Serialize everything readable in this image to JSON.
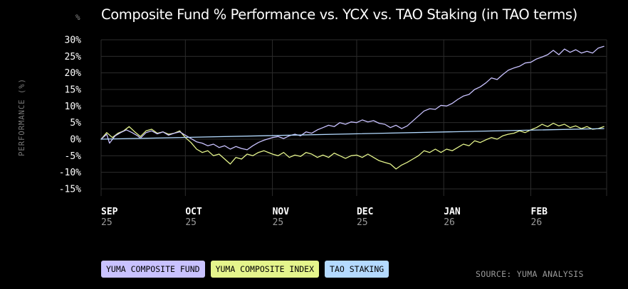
{
  "header": {
    "unit_label": "%",
    "title": "Composite Fund % Performance vs. YCX vs. TAO Staking (in TAO terms)"
  },
  "footer": {
    "source": "SOURCE: YUMA ANALYSIS"
  },
  "colors": {
    "background": "#000000",
    "grid": "#2c2c2c",
    "yuma_composite_fund": "#c9c2ff",
    "yuma_composite_index": "#e5f58c",
    "tao_staking": "#b4daff"
  },
  "chart_data": {
    "type": "line",
    "title": "Composite Fund % Performance vs. YCX vs. TAO Staking (in TAO terms)",
    "xlabel": "",
    "ylabel": "PERFORMANCE (%)",
    "ylim": [
      -15,
      30
    ],
    "xlim": [
      "2025-09-01",
      "2026-02-28"
    ],
    "grid": true,
    "legend_position": "bottom-left",
    "y_ticks": [
      {
        "value": 30,
        "label": "30%"
      },
      {
        "value": 25,
        "label": "25%"
      },
      {
        "value": 20,
        "label": "20%"
      },
      {
        "value": 15,
        "label": "15%"
      },
      {
        "value": 10,
        "label": "10%"
      },
      {
        "value": 5,
        "label": "5%"
      },
      {
        "value": 0,
        "label": "0%"
      },
      {
        "value": -5,
        "label": "-5%"
      },
      {
        "value": -10,
        "label": "-10%"
      },
      {
        "value": -15,
        "label": "-15%"
      }
    ],
    "x_ticks": [
      {
        "date": "2025-09-01",
        "month": "SEP",
        "year": "25"
      },
      {
        "date": "2025-10-01",
        "month": "OCT",
        "year": "25"
      },
      {
        "date": "2025-11-01",
        "month": "NOV",
        "year": "25"
      },
      {
        "date": "2025-12-01",
        "month": "DEC",
        "year": "25"
      },
      {
        "date": "2026-01-01",
        "month": "JAN",
        "year": "26"
      },
      {
        "date": "2026-02-01",
        "month": "FEB",
        "year": "26"
      }
    ],
    "series": [
      {
        "name": "YUMA COMPOSITE FUND",
        "color": "#c9c2ff",
        "points": [
          [
            "2025-09-01",
            0.0
          ],
          [
            "2025-09-03",
            1.5
          ],
          [
            "2025-09-04",
            -1.2
          ],
          [
            "2025-09-06",
            1.0
          ],
          [
            "2025-09-08",
            2.0
          ],
          [
            "2025-09-10",
            2.8
          ],
          [
            "2025-09-12",
            2.0
          ],
          [
            "2025-09-14",
            1.0
          ],
          [
            "2025-09-15",
            0.3
          ],
          [
            "2025-09-17",
            2.0
          ],
          [
            "2025-09-19",
            2.5
          ],
          [
            "2025-09-21",
            1.6
          ],
          [
            "2025-09-23",
            2.2
          ],
          [
            "2025-09-25",
            1.2
          ],
          [
            "2025-09-27",
            1.8
          ],
          [
            "2025-09-29",
            2.2
          ],
          [
            "2025-10-01",
            1.2
          ],
          [
            "2025-10-03",
            0.2
          ],
          [
            "2025-10-05",
            -0.8
          ],
          [
            "2025-10-07",
            -1.2
          ],
          [
            "2025-10-09",
            -2.0
          ],
          [
            "2025-10-11",
            -1.5
          ],
          [
            "2025-10-13",
            -2.5
          ],
          [
            "2025-10-15",
            -2.0
          ],
          [
            "2025-10-17",
            -3.0
          ],
          [
            "2025-10-19",
            -2.2
          ],
          [
            "2025-10-21",
            -2.8
          ],
          [
            "2025-10-23",
            -3.2
          ],
          [
            "2025-10-25",
            -2.0
          ],
          [
            "2025-10-27",
            -1.0
          ],
          [
            "2025-10-29",
            -0.3
          ],
          [
            "2025-11-01",
            0.5
          ],
          [
            "2025-11-03",
            0.8
          ],
          [
            "2025-11-05",
            0.2
          ],
          [
            "2025-11-07",
            1.0
          ],
          [
            "2025-11-09",
            1.5
          ],
          [
            "2025-11-11",
            1.0
          ],
          [
            "2025-11-13",
            2.2
          ],
          [
            "2025-11-15",
            1.8
          ],
          [
            "2025-11-17",
            2.8
          ],
          [
            "2025-11-19",
            3.5
          ],
          [
            "2025-11-21",
            4.2
          ],
          [
            "2025-11-23",
            3.8
          ],
          [
            "2025-11-25",
            5.0
          ],
          [
            "2025-11-27",
            4.5
          ],
          [
            "2025-11-29",
            5.2
          ],
          [
            "2025-12-01",
            5.0
          ],
          [
            "2025-12-03",
            5.8
          ],
          [
            "2025-12-05",
            5.2
          ],
          [
            "2025-12-07",
            5.6
          ],
          [
            "2025-12-09",
            4.8
          ],
          [
            "2025-12-11",
            4.5
          ],
          [
            "2025-12-13",
            3.5
          ],
          [
            "2025-12-15",
            4.2
          ],
          [
            "2025-12-17",
            3.2
          ],
          [
            "2025-12-19",
            4.0
          ],
          [
            "2025-12-21",
            5.5
          ],
          [
            "2025-12-23",
            7.0
          ],
          [
            "2025-12-25",
            8.5
          ],
          [
            "2025-12-27",
            9.2
          ],
          [
            "2025-12-29",
            9.0
          ],
          [
            "2025-12-31",
            10.2
          ],
          [
            "2026-01-02",
            10.0
          ],
          [
            "2026-01-04",
            10.8
          ],
          [
            "2026-01-06",
            12.0
          ],
          [
            "2026-01-08",
            13.0
          ],
          [
            "2026-01-10",
            13.5
          ],
          [
            "2026-01-12",
            15.0
          ],
          [
            "2026-01-14",
            15.8
          ],
          [
            "2026-01-16",
            17.0
          ],
          [
            "2026-01-18",
            18.5
          ],
          [
            "2026-01-20",
            18.0
          ],
          [
            "2026-01-22",
            19.5
          ],
          [
            "2026-01-24",
            20.8
          ],
          [
            "2026-01-26",
            21.5
          ],
          [
            "2026-01-28",
            22.0
          ],
          [
            "2026-01-30",
            23.0
          ],
          [
            "2026-02-01",
            23.2
          ],
          [
            "2026-02-03",
            24.2
          ],
          [
            "2026-02-05",
            24.8
          ],
          [
            "2026-02-07",
            25.5
          ],
          [
            "2026-02-09",
            26.8
          ],
          [
            "2026-02-11",
            25.5
          ],
          [
            "2026-02-13",
            27.2
          ],
          [
            "2026-02-15",
            26.2
          ],
          [
            "2026-02-17",
            27.0
          ],
          [
            "2026-02-19",
            26.0
          ],
          [
            "2026-02-21",
            26.5
          ],
          [
            "2026-02-23",
            26.0
          ],
          [
            "2026-02-25",
            27.5
          ],
          [
            "2026-02-27",
            28.0
          ]
        ]
      },
      {
        "name": "YUMA COMPOSITE INDEX",
        "color": "#e5f58c",
        "points": [
          [
            "2025-09-01",
            0.0
          ],
          [
            "2025-09-03",
            2.0
          ],
          [
            "2025-09-05",
            0.5
          ],
          [
            "2025-09-07",
            1.8
          ],
          [
            "2025-09-09",
            2.5
          ],
          [
            "2025-09-11",
            3.8
          ],
          [
            "2025-09-13",
            2.2
          ],
          [
            "2025-09-15",
            0.8
          ],
          [
            "2025-09-17",
            2.5
          ],
          [
            "2025-09-19",
            3.0
          ],
          [
            "2025-09-21",
            1.8
          ],
          [
            "2025-09-23",
            2.2
          ],
          [
            "2025-09-25",
            1.5
          ],
          [
            "2025-09-27",
            1.8
          ],
          [
            "2025-09-29",
            2.5
          ],
          [
            "2025-10-01",
            0.5
          ],
          [
            "2025-10-03",
            -1.0
          ],
          [
            "2025-10-05",
            -3.0
          ],
          [
            "2025-10-07",
            -4.0
          ],
          [
            "2025-10-09",
            -3.5
          ],
          [
            "2025-10-11",
            -5.0
          ],
          [
            "2025-10-13",
            -4.5
          ],
          [
            "2025-10-15",
            -6.0
          ],
          [
            "2025-10-17",
            -7.5
          ],
          [
            "2025-10-19",
            -5.5
          ],
          [
            "2025-10-21",
            -6.0
          ],
          [
            "2025-10-23",
            -4.5
          ],
          [
            "2025-10-25",
            -5.0
          ],
          [
            "2025-10-27",
            -4.0
          ],
          [
            "2025-10-29",
            -3.5
          ],
          [
            "2025-11-01",
            -4.5
          ],
          [
            "2025-11-03",
            -5.0
          ],
          [
            "2025-11-05",
            -4.0
          ],
          [
            "2025-11-07",
            -5.5
          ],
          [
            "2025-11-09",
            -4.8
          ],
          [
            "2025-11-11",
            -5.2
          ],
          [
            "2025-11-13",
            -4.0
          ],
          [
            "2025-11-15",
            -4.5
          ],
          [
            "2025-11-17",
            -5.5
          ],
          [
            "2025-11-19",
            -4.8
          ],
          [
            "2025-11-21",
            -5.5
          ],
          [
            "2025-11-23",
            -4.2
          ],
          [
            "2025-11-25",
            -5.0
          ],
          [
            "2025-11-27",
            -5.8
          ],
          [
            "2025-11-29",
            -5.0
          ],
          [
            "2025-12-01",
            -4.8
          ],
          [
            "2025-12-03",
            -5.5
          ],
          [
            "2025-12-05",
            -4.5
          ],
          [
            "2025-12-07",
            -5.5
          ],
          [
            "2025-12-09",
            -6.5
          ],
          [
            "2025-12-11",
            -7.0
          ],
          [
            "2025-12-13",
            -7.5
          ],
          [
            "2025-12-15",
            -9.0
          ],
          [
            "2025-12-17",
            -7.8
          ],
          [
            "2025-12-19",
            -7.0
          ],
          [
            "2025-12-21",
            -6.0
          ],
          [
            "2025-12-23",
            -5.0
          ],
          [
            "2025-12-25",
            -3.5
          ],
          [
            "2025-12-27",
            -4.0
          ],
          [
            "2025-12-29",
            -3.0
          ],
          [
            "2025-12-31",
            -4.0
          ],
          [
            "2026-01-02",
            -3.0
          ],
          [
            "2026-01-04",
            -3.5
          ],
          [
            "2026-01-06",
            -2.5
          ],
          [
            "2026-01-08",
            -1.5
          ],
          [
            "2026-01-10",
            -2.0
          ],
          [
            "2026-01-12",
            -0.5
          ],
          [
            "2026-01-14",
            -1.0
          ],
          [
            "2026-01-16",
            -0.2
          ],
          [
            "2026-01-18",
            0.5
          ],
          [
            "2026-01-20",
            0.0
          ],
          [
            "2026-01-22",
            1.0
          ],
          [
            "2026-01-24",
            1.5
          ],
          [
            "2026-01-26",
            1.8
          ],
          [
            "2026-01-28",
            2.5
          ],
          [
            "2026-01-30",
            2.0
          ],
          [
            "2026-02-01",
            2.8
          ],
          [
            "2026-02-03",
            3.5
          ],
          [
            "2026-02-05",
            4.5
          ],
          [
            "2026-02-07",
            3.8
          ],
          [
            "2026-02-09",
            4.8
          ],
          [
            "2026-02-11",
            4.0
          ],
          [
            "2026-02-13",
            4.5
          ],
          [
            "2026-02-15",
            3.5
          ],
          [
            "2026-02-17",
            4.0
          ],
          [
            "2026-02-19",
            3.2
          ],
          [
            "2026-02-21",
            3.8
          ],
          [
            "2026-02-23",
            3.0
          ],
          [
            "2026-02-25",
            3.2
          ],
          [
            "2026-02-27",
            3.8
          ]
        ]
      },
      {
        "name": "TAO STAKING",
        "color": "#b4daff",
        "points": [
          [
            "2025-09-01",
            0.0
          ],
          [
            "2026-02-27",
            3.2
          ]
        ]
      }
    ]
  }
}
